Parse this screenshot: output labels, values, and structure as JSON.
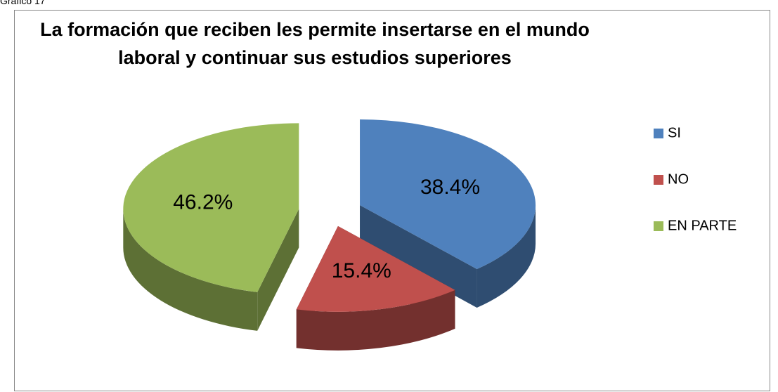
{
  "caption": "Gráfico 17",
  "chart_data": {
    "type": "pie3d",
    "title": "La formación que reciben les permite insertarse en el mundo laboral y continuar sus estudios superiores",
    "categories": [
      "SI",
      "NO",
      "EN PARTE"
    ],
    "values": [
      38.4,
      15.4,
      46.2
    ],
    "value_labels": [
      "38.4%",
      "15.4%",
      "46.2%"
    ],
    "colors": [
      "#4f81bd",
      "#c0504d",
      "#9bbb59"
    ],
    "legend": "right"
  }
}
